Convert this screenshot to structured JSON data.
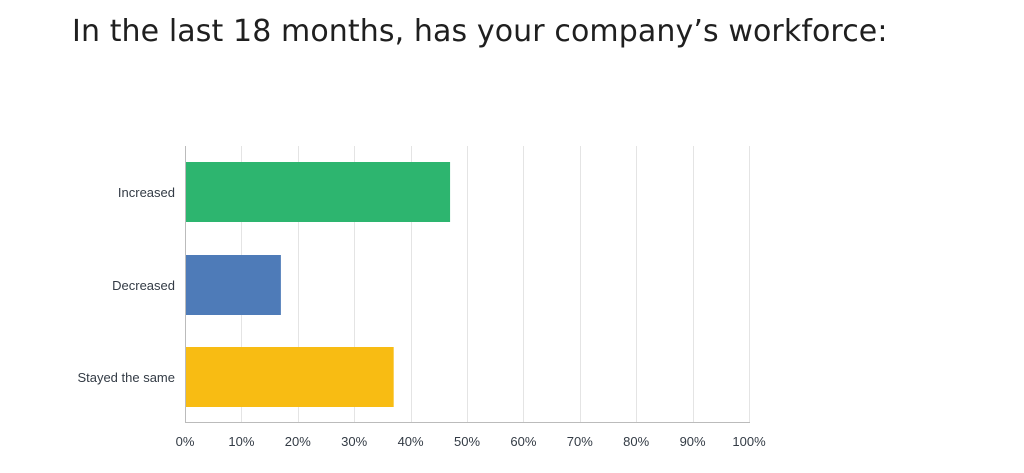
{
  "chart_data": {
    "type": "bar",
    "orientation": "horizontal",
    "title": "In the last 18 months, has your company’s workforce:",
    "categories": [
      "Increased",
      "Decreased",
      "Stayed the same"
    ],
    "values": [
      47,
      17,
      37
    ],
    "colors": [
      "#2db56f",
      "#4e7bb8",
      "#f8bc13"
    ],
    "xlim": [
      0,
      100
    ],
    "xticks": [
      0,
      10,
      20,
      30,
      40,
      50,
      60,
      70,
      80,
      90,
      100
    ],
    "tick_suffix": "%",
    "grid": true,
    "gridColor": "#e4e4e4",
    "axisColor": "#bbbbbb"
  }
}
